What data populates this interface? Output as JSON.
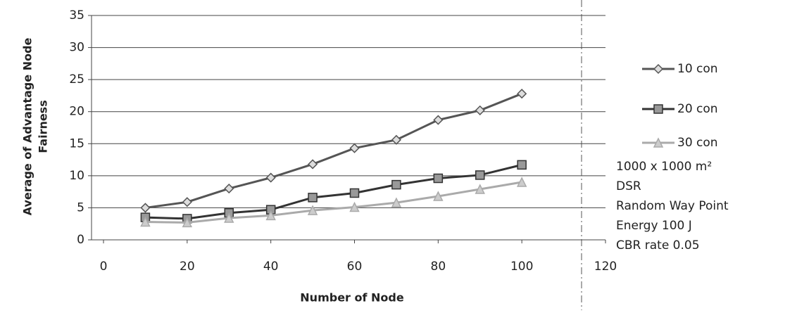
{
  "chart_data": {
    "type": "line",
    "x_label": "Number of Node",
    "y_label": [
      "Average of Advantage Node",
      "Fairness"
    ],
    "x": [
      10,
      20,
      30,
      40,
      50,
      60,
      70,
      80,
      90,
      100
    ],
    "series": [
      {
        "name": "10 con",
        "color": "#555555",
        "marker": "diamond",
        "values": [
          5,
          5.9,
          8,
          9.7,
          11.8,
          14.3,
          15.6,
          18.7,
          20.2,
          22.8
        ]
      },
      {
        "name": "20 con",
        "color": "#333333",
        "marker": "square",
        "values": [
          3.5,
          3.3,
          4.2,
          4.7,
          6.6,
          7.3,
          8.6,
          9.6,
          10.1,
          11.7
        ]
      },
      {
        "name": "30 con",
        "color": "#aaaaaa",
        "marker": "triangle",
        "values": [
          2.8,
          2.7,
          3.4,
          3.8,
          4.6,
          5.1,
          5.8,
          6.8,
          7.9,
          9.0
        ]
      }
    ],
    "xlim": [
      0,
      120
    ],
    "xticks": [
      0,
      20,
      40,
      60,
      80,
      100,
      120
    ],
    "ylim": [
      0,
      35
    ],
    "yticks": [
      0,
      5,
      10,
      15,
      20,
      25,
      30,
      35
    ],
    "grid": true,
    "legend": "right",
    "annotations": [
      "1000 x 1000 m²",
      "DSR",
      "Random Way Point",
      "Energy 100 J",
      "CBR rate 0.05"
    ]
  }
}
